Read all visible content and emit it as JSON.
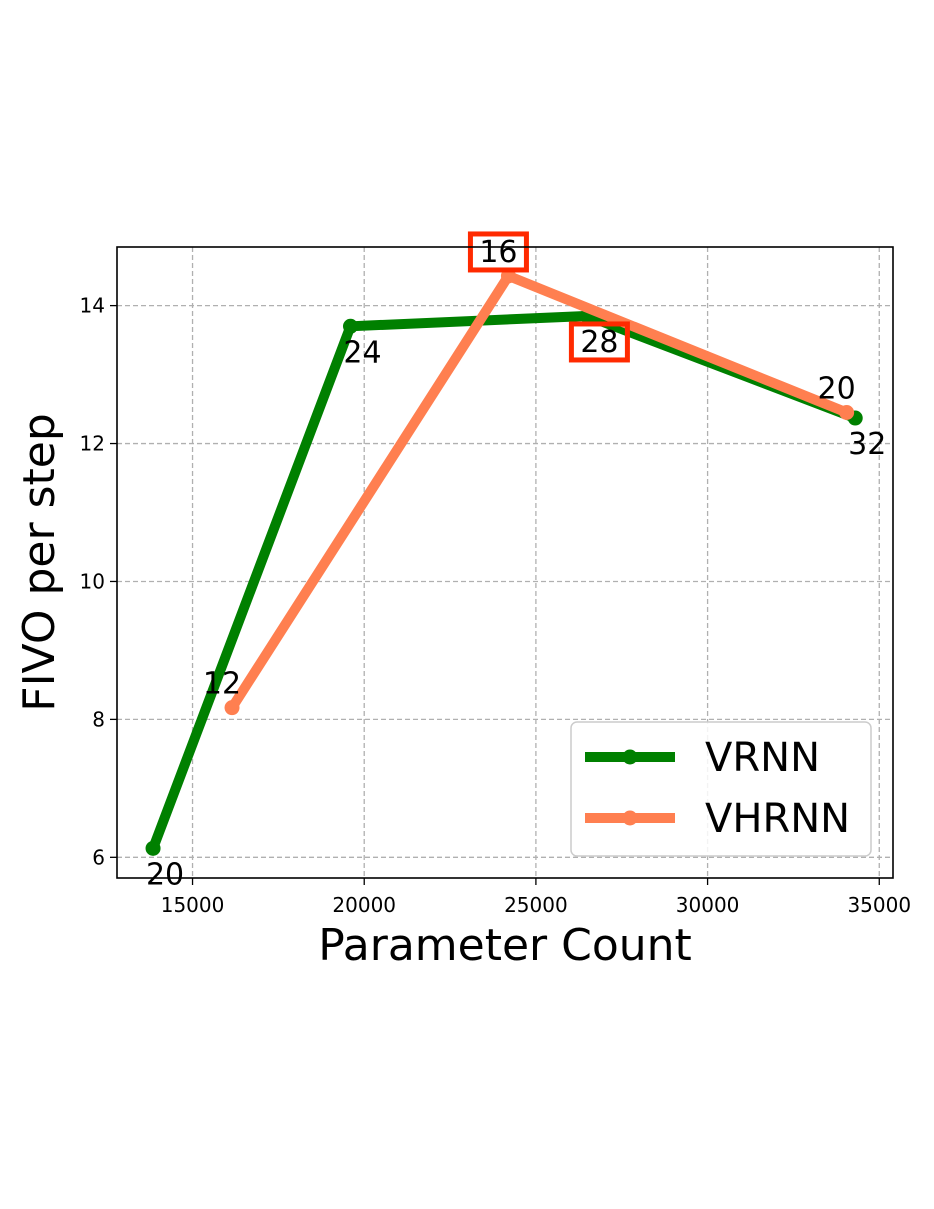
{
  "chart_data": {
    "type": "line",
    "title": "",
    "xlabel": "Parameter Count",
    "ylabel": "FIVO per step",
    "xlim": [
      12800,
      35400
    ],
    "ylim": [
      5.7,
      14.85
    ],
    "xticks": [
      15000,
      20000,
      25000,
      30000,
      35000
    ],
    "yticks": [
      6,
      8,
      10,
      12,
      14
    ],
    "grid": true,
    "legend_position": "lower-right",
    "series": [
      {
        "name": "VRNN",
        "color": "#008000",
        "points": [
          {
            "x": 13850,
            "y": 6.13,
            "label": "20",
            "label_pos": "below",
            "highlight": false
          },
          {
            "x": 19600,
            "y": 13.7,
            "label": "24",
            "label_pos": "below",
            "highlight": false
          },
          {
            "x": 26500,
            "y": 13.85,
            "label": "28",
            "label_pos": "below",
            "highlight": true
          },
          {
            "x": 34300,
            "y": 12.37,
            "label": "32",
            "label_pos": "below",
            "highlight": false
          }
        ]
      },
      {
        "name": "VHRNN",
        "color": "#ff7f50",
        "points": [
          {
            "x": 16150,
            "y": 8.17,
            "label": "12",
            "label_pos": "above",
            "highlight": false
          },
          {
            "x": 24200,
            "y": 14.43,
            "label": "16",
            "label_pos": "above",
            "highlight": true
          },
          {
            "x": 34050,
            "y": 12.45,
            "label": "20",
            "label_pos": "above",
            "highlight": false
          }
        ]
      }
    ],
    "highlight_color": "#ff2a00"
  }
}
